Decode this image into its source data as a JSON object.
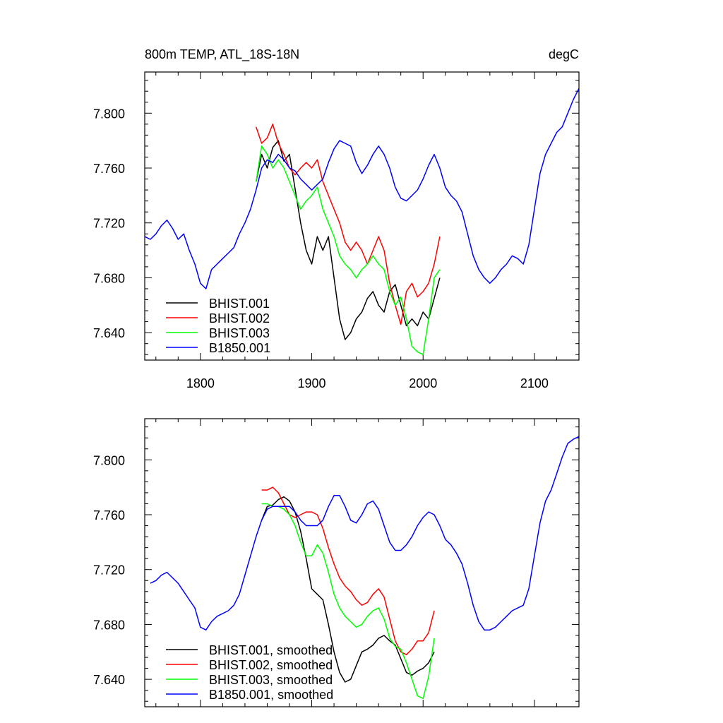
{
  "chart_data": [
    {
      "type": "line",
      "title": "800m TEMP, ATL_18S-18N",
      "units": "degC",
      "xlim": [
        1750,
        2140
      ],
      "ylim": [
        7.62,
        7.83
      ],
      "x_ticks": [
        1800,
        1900,
        2000,
        2100
      ],
      "x_tick_labels": [
        "1800",
        "1900",
        "2000",
        "2100"
      ],
      "y_ticks": [
        7.64,
        7.68,
        7.72,
        7.76,
        7.8
      ],
      "y_tick_labels": [
        "7.640",
        "7.680",
        "7.720",
        "7.760",
        "7.800"
      ],
      "legend_position": "bottom-left",
      "series": [
        {
          "name": "BHIST.001",
          "color": "#000000",
          "x": [
            1850,
            1855,
            1860,
            1865,
            1870,
            1875,
            1880,
            1885,
            1890,
            1895,
            1900,
            1905,
            1910,
            1915,
            1920,
            1925,
            1930,
            1935,
            1940,
            1945,
            1950,
            1955,
            1960,
            1965,
            1970,
            1975,
            1980,
            1985,
            1990,
            1995,
            2000,
            2005,
            2010,
            2015
          ],
          "y": [
            7.75,
            7.77,
            7.76,
            7.775,
            7.78,
            7.765,
            7.77,
            7.745,
            7.72,
            7.7,
            7.69,
            7.71,
            7.7,
            7.71,
            7.68,
            7.65,
            7.635,
            7.64,
            7.65,
            7.655,
            7.665,
            7.67,
            7.66,
            7.655,
            7.67,
            7.675,
            7.66,
            7.645,
            7.65,
            7.645,
            7.655,
            7.65,
            7.665,
            7.68
          ]
        },
        {
          "name": "BHIST.002",
          "color": "#ff0000",
          "x": [
            1850,
            1855,
            1860,
            1865,
            1870,
            1875,
            1880,
            1885,
            1890,
            1895,
            1900,
            1905,
            1910,
            1915,
            1920,
            1925,
            1930,
            1935,
            1940,
            1945,
            1950,
            1955,
            1960,
            1965,
            1970,
            1975,
            1980,
            1985,
            1990,
            1995,
            2000,
            2005,
            2010,
            2015
          ],
          "y": [
            7.79,
            7.778,
            7.782,
            7.792,
            7.778,
            7.77,
            7.76,
            7.755,
            7.76,
            7.764,
            7.76,
            7.766,
            7.75,
            7.74,
            7.73,
            7.72,
            7.706,
            7.7,
            7.706,
            7.7,
            7.69,
            7.7,
            7.71,
            7.7,
            7.676,
            7.66,
            7.646,
            7.67,
            7.676,
            7.666,
            7.67,
            7.676,
            7.69,
            7.71
          ]
        },
        {
          "name": "BHIST.003",
          "color": "#00ff00",
          "x": [
            1850,
            1855,
            1860,
            1865,
            1870,
            1875,
            1880,
            1885,
            1890,
            1895,
            1900,
            1905,
            1910,
            1915,
            1920,
            1925,
            1930,
            1935,
            1940,
            1945,
            1950,
            1955,
            1960,
            1965,
            1970,
            1975,
            1980,
            1985,
            1990,
            1995,
            2000,
            2005,
            2010,
            2015
          ],
          "y": [
            7.75,
            7.776,
            7.77,
            7.76,
            7.766,
            7.76,
            7.75,
            7.74,
            7.73,
            7.736,
            7.74,
            7.746,
            7.73,
            7.72,
            7.71,
            7.696,
            7.69,
            7.686,
            7.68,
            7.686,
            7.69,
            7.696,
            7.69,
            7.686,
            7.67,
            7.66,
            7.666,
            7.65,
            7.63,
            7.626,
            7.624,
            7.65,
            7.68,
            7.686
          ]
        },
        {
          "name": "B1850.001",
          "color": "#0000ff",
          "x": [
            1750,
            1755,
            1760,
            1765,
            1770,
            1775,
            1780,
            1785,
            1790,
            1795,
            1800,
            1805,
            1810,
            1815,
            1820,
            1825,
            1830,
            1835,
            1840,
            1845,
            1850,
            1855,
            1860,
            1865,
            1870,
            1875,
            1880,
            1885,
            1890,
            1895,
            1900,
            1905,
            1910,
            1915,
            1920,
            1925,
            1930,
            1935,
            1940,
            1945,
            1950,
            1955,
            1960,
            1965,
            1970,
            1975,
            1980,
            1985,
            1990,
            1995,
            2000,
            2005,
            2010,
            2015,
            2020,
            2025,
            2030,
            2035,
            2040,
            2045,
            2050,
            2055,
            2060,
            2065,
            2070,
            2075,
            2080,
            2085,
            2090,
            2095,
            2100,
            2105,
            2110,
            2115,
            2120,
            2125,
            2130,
            2135,
            2140
          ],
          "y": [
            7.71,
            7.708,
            7.712,
            7.718,
            7.722,
            7.716,
            7.708,
            7.712,
            7.7,
            7.69,
            7.676,
            7.672,
            7.686,
            7.69,
            7.694,
            7.698,
            7.702,
            7.712,
            7.72,
            7.73,
            7.744,
            7.76,
            7.766,
            7.764,
            7.77,
            7.766,
            7.76,
            7.758,
            7.752,
            7.748,
            7.744,
            7.748,
            7.752,
            7.764,
            7.774,
            7.78,
            7.778,
            7.776,
            7.764,
            7.756,
            7.762,
            7.77,
            7.776,
            7.77,
            7.76,
            7.746,
            7.738,
            7.736,
            7.74,
            7.744,
            7.752,
            7.762,
            7.77,
            7.76,
            7.746,
            7.74,
            7.736,
            7.728,
            7.712,
            7.696,
            7.686,
            7.68,
            7.676,
            7.68,
            7.686,
            7.69,
            7.696,
            7.694,
            7.69,
            7.704,
            7.73,
            7.756,
            7.77,
            7.778,
            7.786,
            7.79,
            7.8,
            7.81,
            7.818
          ]
        }
      ]
    },
    {
      "type": "line",
      "xlim": [
        1750,
        2140
      ],
      "ylim": [
        7.62,
        7.83
      ],
      "x_ticks": [
        1800,
        1900,
        2000,
        2100
      ],
      "y_ticks": [
        7.64,
        7.68,
        7.72,
        7.76,
        7.8
      ],
      "y_tick_labels": [
        "7.640",
        "7.680",
        "7.720",
        "7.760",
        "7.800"
      ],
      "legend_position": "bottom-left",
      "series": [
        {
          "name": "BHIST.001, smoothed",
          "color": "#000000",
          "x": [
            1855,
            1860,
            1865,
            1870,
            1875,
            1880,
            1885,
            1890,
            1895,
            1900,
            1905,
            1910,
            1915,
            1920,
            1925,
            1930,
            1935,
            1940,
            1945,
            1950,
            1955,
            1960,
            1965,
            1970,
            1975,
            1980,
            1985,
            1990,
            1995,
            2000,
            2005,
            2010
          ],
          "y": [
            7.756,
            7.766,
            7.767,
            7.771,
            7.773,
            7.77,
            7.762,
            7.748,
            7.728,
            7.706,
            7.702,
            7.698,
            7.68,
            7.66,
            7.645,
            7.638,
            7.64,
            7.65,
            7.66,
            7.662,
            7.665,
            7.67,
            7.672,
            7.668,
            7.665,
            7.655,
            7.645,
            7.643,
            7.646,
            7.648,
            7.652,
            7.66
          ]
        },
        {
          "name": "BHIST.002, smoothed",
          "color": "#ff0000",
          "x": [
            1855,
            1860,
            1865,
            1870,
            1875,
            1880,
            1885,
            1890,
            1895,
            1900,
            1905,
            1910,
            1915,
            1920,
            1925,
            1930,
            1935,
            1940,
            1945,
            1950,
            1955,
            1960,
            1965,
            1970,
            1975,
            1980,
            1985,
            1990,
            1995,
            2000,
            2005,
            2010
          ],
          "y": [
            7.778,
            7.778,
            7.78,
            7.776,
            7.768,
            7.76,
            7.758,
            7.76,
            7.762,
            7.762,
            7.76,
            7.75,
            7.736,
            7.724,
            7.714,
            7.708,
            7.704,
            7.698,
            7.694,
            7.696,
            7.702,
            7.706,
            7.7,
            7.684,
            7.668,
            7.66,
            7.658,
            7.662,
            7.668,
            7.668,
            7.674,
            7.69
          ]
        },
        {
          "name": "BHIST.003, smoothed",
          "color": "#00ff00",
          "x": [
            1855,
            1860,
            1865,
            1870,
            1875,
            1880,
            1885,
            1890,
            1895,
            1900,
            1905,
            1910,
            1915,
            1920,
            1925,
            1930,
            1935,
            1940,
            1945,
            1950,
            1955,
            1960,
            1965,
            1970,
            1975,
            1980,
            1985,
            1990,
            1995,
            2000,
            2005,
            2010
          ],
          "y": [
            7.768,
            7.768,
            7.766,
            7.766,
            7.764,
            7.76,
            7.752,
            7.74,
            7.73,
            7.73,
            7.738,
            7.732,
            7.718,
            7.702,
            7.692,
            7.686,
            7.682,
            7.678,
            7.68,
            7.686,
            7.69,
            7.692,
            7.684,
            7.67,
            7.664,
            7.662,
            7.652,
            7.64,
            7.628,
            7.626,
            7.642,
            7.67
          ]
        },
        {
          "name": "B1850.001, smoothed",
          "color": "#0000ff",
          "x": [
            1755,
            1760,
            1765,
            1770,
            1775,
            1780,
            1785,
            1790,
            1795,
            1800,
            1805,
            1810,
            1815,
            1820,
            1825,
            1830,
            1835,
            1840,
            1845,
            1850,
            1855,
            1860,
            1865,
            1870,
            1875,
            1880,
            1885,
            1890,
            1895,
            1900,
            1905,
            1910,
            1915,
            1920,
            1925,
            1930,
            1935,
            1940,
            1945,
            1950,
            1955,
            1960,
            1965,
            1970,
            1975,
            1980,
            1985,
            1990,
            1995,
            2000,
            2005,
            2010,
            2015,
            2020,
            2025,
            2030,
            2035,
            2040,
            2045,
            2050,
            2055,
            2060,
            2065,
            2070,
            2075,
            2080,
            2085,
            2090,
            2095,
            2100,
            2105,
            2110,
            2115,
            2120,
            2125,
            2130,
            2135,
            2140
          ],
          "y": [
            7.71,
            7.712,
            7.716,
            7.718,
            7.714,
            7.71,
            7.704,
            7.698,
            7.692,
            7.678,
            7.676,
            7.682,
            7.686,
            7.688,
            7.69,
            7.694,
            7.702,
            7.716,
            7.73,
            7.744,
            7.756,
            7.764,
            7.766,
            7.766,
            7.766,
            7.766,
            7.762,
            7.756,
            7.752,
            7.752,
            7.752,
            7.756,
            7.766,
            7.774,
            7.774,
            7.766,
            7.756,
            7.754,
            7.76,
            7.768,
            7.77,
            7.764,
            7.752,
            7.74,
            7.734,
            7.734,
            7.738,
            7.744,
            7.752,
            7.758,
            7.762,
            7.76,
            7.752,
            7.742,
            7.738,
            7.732,
            7.724,
            7.71,
            7.694,
            7.682,
            7.676,
            7.676,
            7.678,
            7.682,
            7.686,
            7.69,
            7.692,
            7.694,
            7.706,
            7.73,
            7.754,
            7.77,
            7.778,
            7.79,
            7.802,
            7.812,
            7.815,
            7.817
          ]
        }
      ]
    }
  ]
}
